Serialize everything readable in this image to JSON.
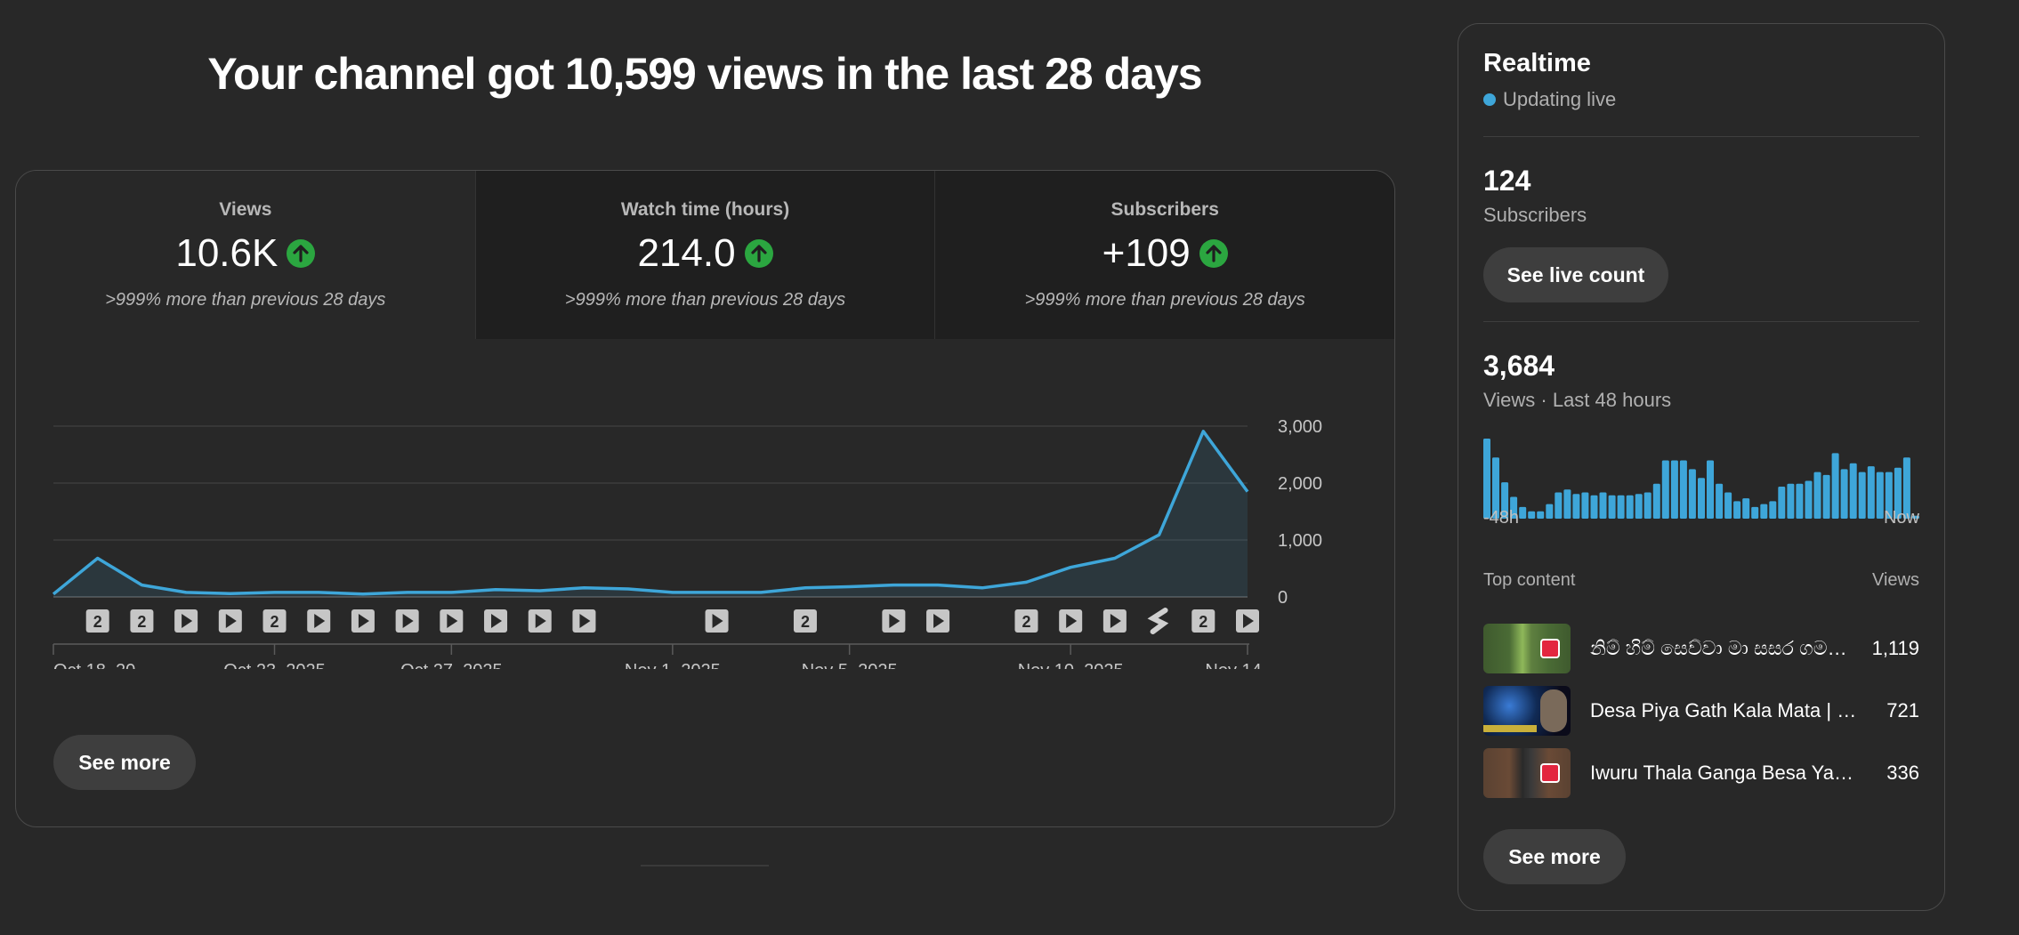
{
  "headline": "Your channel got 10,599 views in the last 28 days",
  "metrics": [
    {
      "label": "Views",
      "value": "10.6K",
      "compare": ">999% more than previous 28 days",
      "trend_icon": "arrow-up-icon"
    },
    {
      "label": "Watch time (hours)",
      "value": "214.0",
      "compare": ">999% more than previous 28 days",
      "trend_icon": "arrow-up-icon"
    },
    {
      "label": "Subscribers",
      "value": "+109",
      "compare": ">999% more than previous 28 days",
      "trend_icon": "arrow-up-icon"
    }
  ],
  "overview_see_more": "See more",
  "colors": {
    "line": "#3ea6d9",
    "up": "#2ba640",
    "background": "#282828"
  },
  "chart_data": {
    "type": "area",
    "x": [
      "Oct 18",
      "Oct 19",
      "Oct 20",
      "Oct 21",
      "Oct 22",
      "Oct 23",
      "Oct 24",
      "Oct 25",
      "Oct 26",
      "Oct 27",
      "Oct 28",
      "Oct 29",
      "Oct 30",
      "Oct 31",
      "Nov 1",
      "Nov 2",
      "Nov 3",
      "Nov 4",
      "Nov 5",
      "Nov 6",
      "Nov 7",
      "Nov 8",
      "Nov 9",
      "Nov 10",
      "Nov 11",
      "Nov 12",
      "Nov 13",
      "Nov 14"
    ],
    "series": [
      {
        "values": [
          50,
          680,
          210,
          80,
          60,
          80,
          80,
          50,
          80,
          80,
          130,
          110,
          160,
          140,
          80,
          80,
          80,
          160,
          180,
          210,
          210,
          160,
          260,
          520,
          680,
          1090,
          2910,
          1850
        ]
      }
    ],
    "ylim": [
      0,
      3000
    ],
    "yticks": [
      "3,000",
      "2,000",
      "1,000",
      "0"
    ],
    "xticks": [
      "Oct 18, 20...",
      "Oct 23, 2025",
      "Oct 27, 2025",
      "Nov 1, 2025",
      "Nov 5, 2025",
      "Nov 10, 2025",
      "Nov 14, ..."
    ],
    "grid": true,
    "markers": [
      {
        "day": 1,
        "kind": "count",
        "text": "2"
      },
      {
        "day": 2,
        "kind": "count",
        "text": "2"
      },
      {
        "day": 3,
        "kind": "video"
      },
      {
        "day": 4,
        "kind": "video"
      },
      {
        "day": 5,
        "kind": "count",
        "text": "2"
      },
      {
        "day": 6,
        "kind": "video"
      },
      {
        "day": 7,
        "kind": "video"
      },
      {
        "day": 8,
        "kind": "video"
      },
      {
        "day": 9,
        "kind": "video"
      },
      {
        "day": 10,
        "kind": "video"
      },
      {
        "day": 11,
        "kind": "video"
      },
      {
        "day": 12,
        "kind": "video"
      },
      {
        "day": 15,
        "kind": "video"
      },
      {
        "day": 17,
        "kind": "count",
        "text": "2"
      },
      {
        "day": 19,
        "kind": "video"
      },
      {
        "day": 20,
        "kind": "video"
      },
      {
        "day": 22,
        "kind": "count",
        "text": "2"
      },
      {
        "day": 23,
        "kind": "video"
      },
      {
        "day": 24,
        "kind": "video"
      },
      {
        "day": 25,
        "kind": "short"
      },
      {
        "day": 26,
        "kind": "count",
        "text": "2"
      },
      {
        "day": 27,
        "kind": "video"
      }
    ]
  },
  "realtime": {
    "title": "Realtime",
    "live_label": "Updating live",
    "subscribers_value": "124",
    "subscribers_label": "Subscribers",
    "live_count_button": "See live count",
    "views_value": "3,684",
    "views_label": "Views · Last 48 hours",
    "bars": [
      55,
      42,
      25,
      15,
      8,
      5,
      5,
      10,
      18,
      20,
      17,
      18,
      16,
      18,
      16,
      16,
      16,
      17,
      18,
      24,
      40,
      40,
      40,
      34,
      28,
      40,
      24,
      18,
      12,
      14,
      8,
      10,
      12,
      22,
      24,
      24,
      26,
      32,
      30,
      45,
      34,
      38,
      32,
      36,
      32,
      32,
      35,
      42,
      2
    ],
    "axis_start": "-48h",
    "axis_end": "Now",
    "top_content_label": "Top content",
    "views_header": "Views",
    "top_content": [
      {
        "title": "නිම් හිම් සෙව්වා මා සසර ගමන් කළා",
        "views": "1,119"
      },
      {
        "title": "Desa Piya Gath Kala Mata | Official Video",
        "views": "721"
      },
      {
        "title": "Iwuru Thala Ganga Besa Yana Kale",
        "views": "336"
      }
    ],
    "see_more": "See more"
  }
}
